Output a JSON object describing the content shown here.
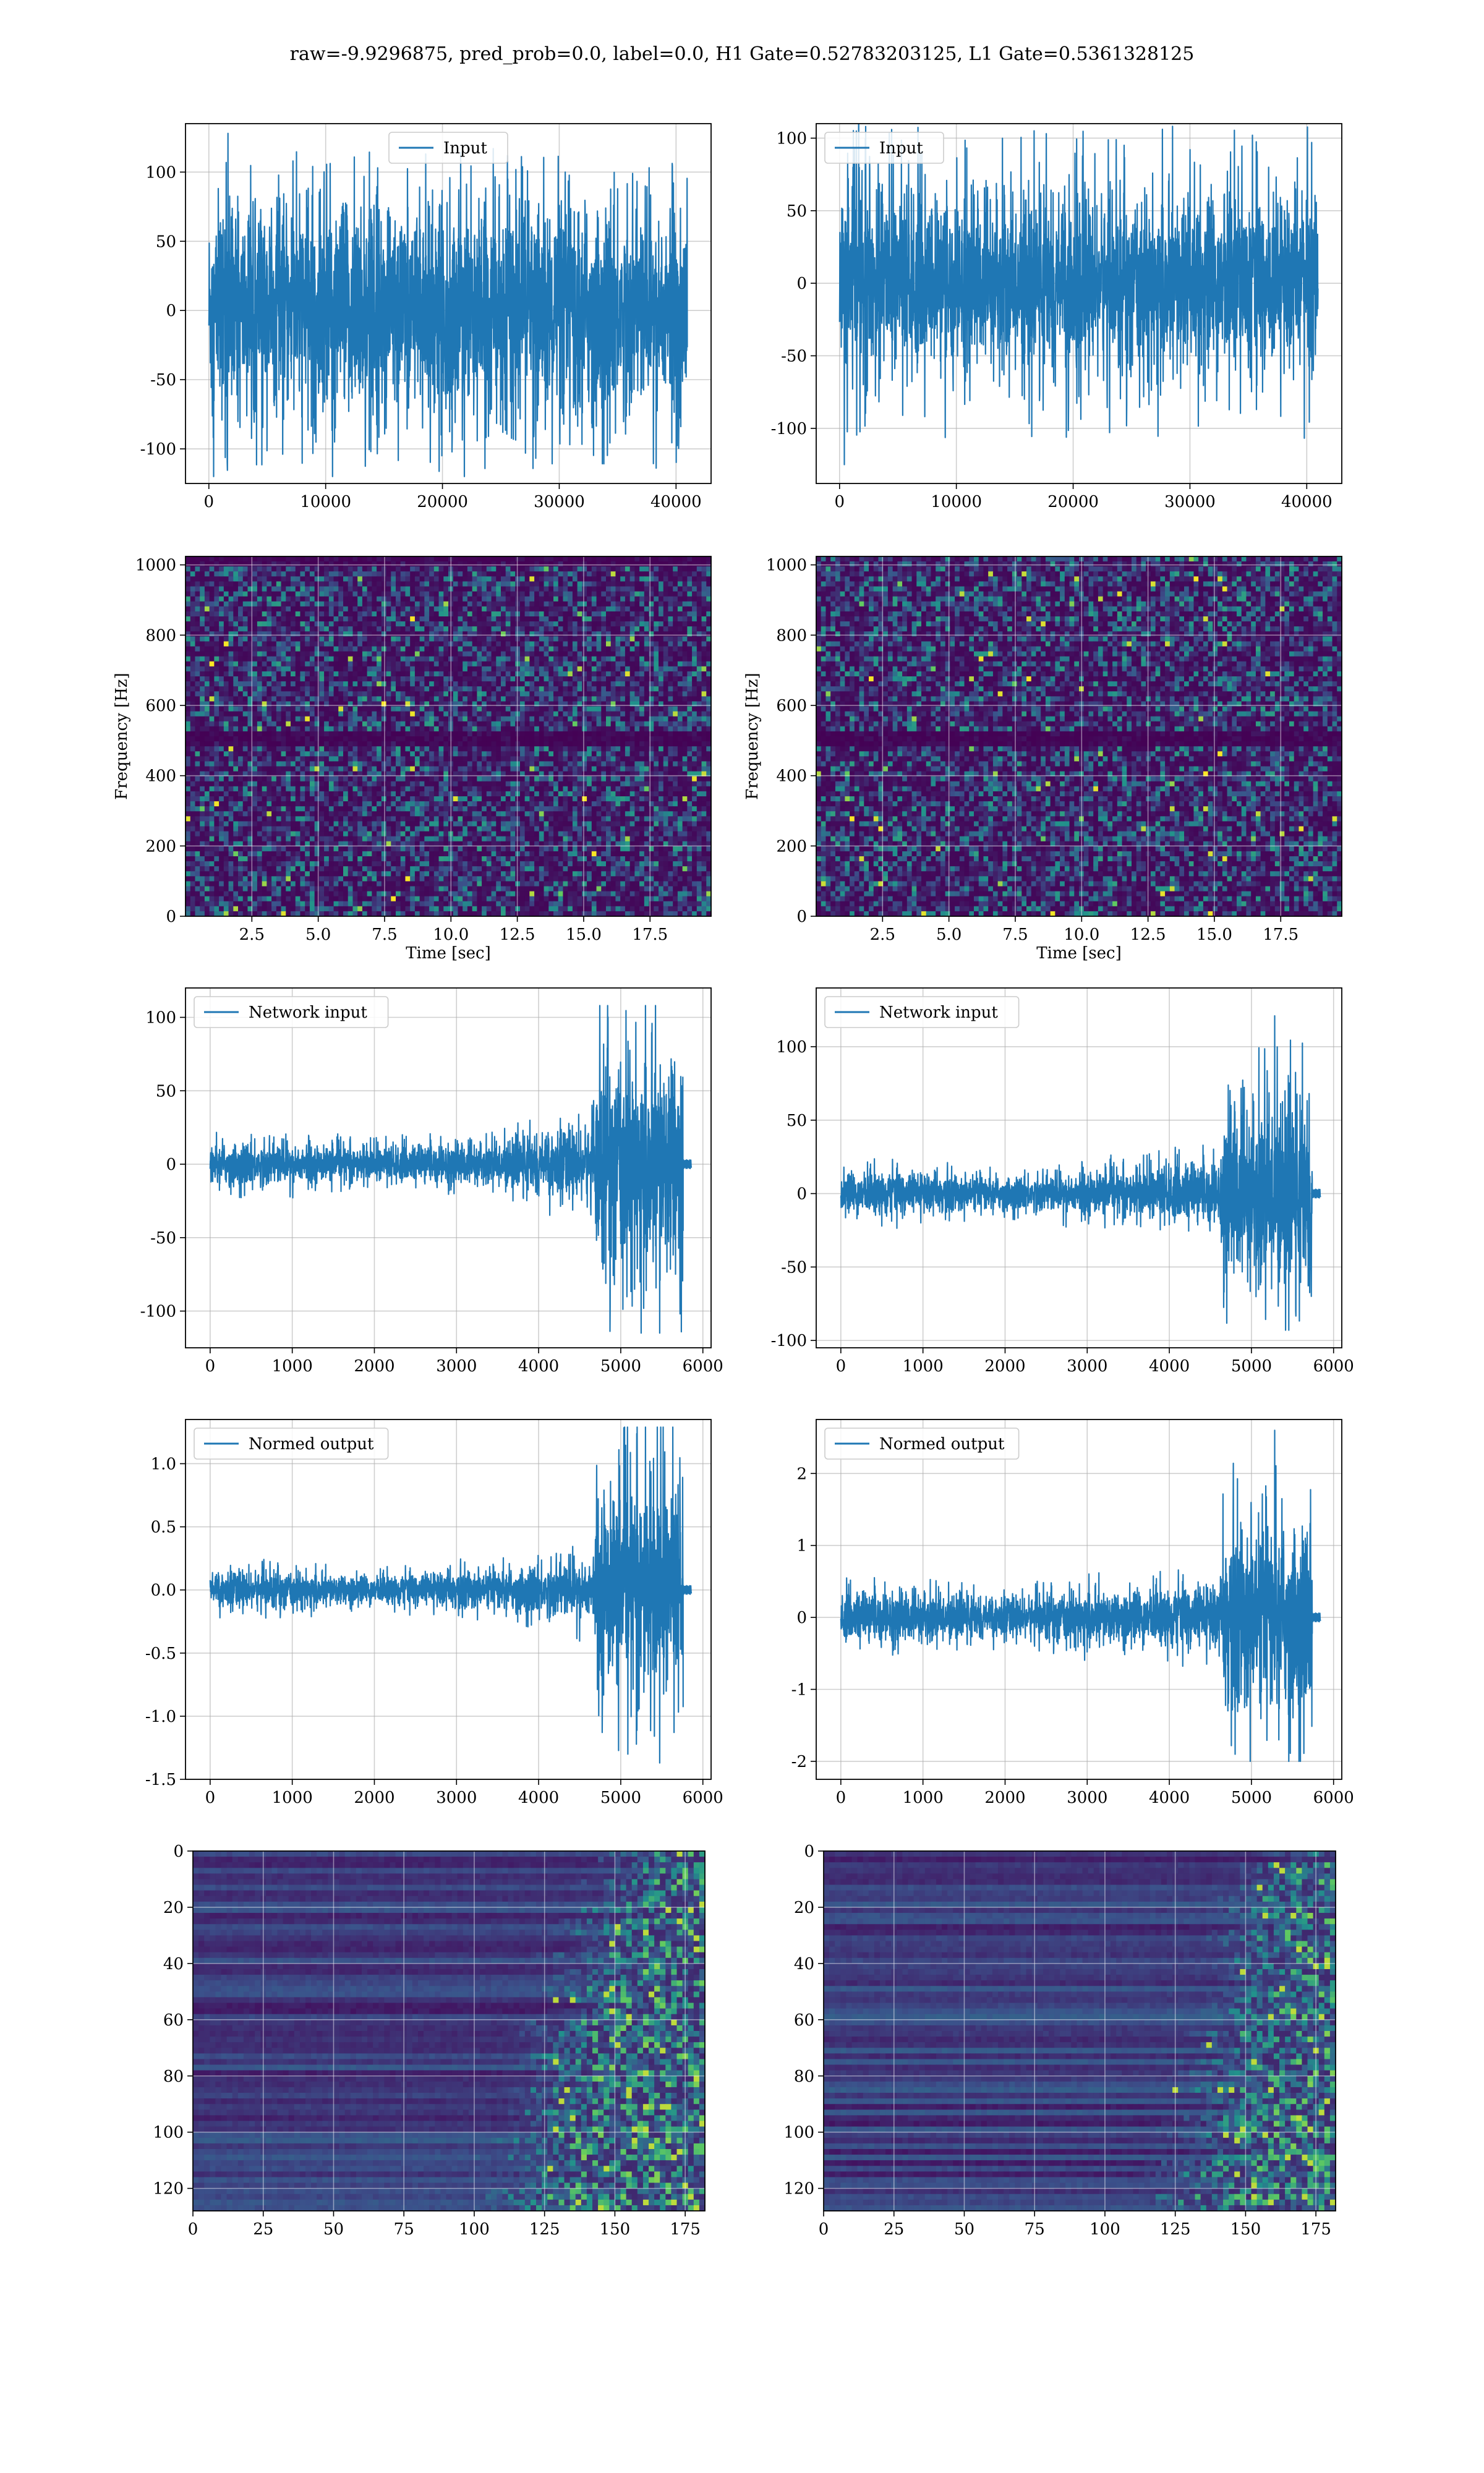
{
  "figure": {
    "title": "raw=-9.9296875, pred_prob=0.0, label=0.0, H1 Gate=0.52783203125, L1 Gate=0.5361328125"
  },
  "colors": {
    "line": "#1f77b4",
    "grid": "#b0b0b0",
    "viridis_low": "#440154",
    "viridis_mid": "#21918c",
    "viridis_high": "#fde725"
  },
  "chart_data": [
    {
      "id": "input-h1",
      "type": "line",
      "series": [
        {
          "name": "Input"
        }
      ],
      "legend": "top-center",
      "xlim": [
        -2000,
        43000
      ],
      "ylim": [
        -125,
        135
      ],
      "xticks": [
        0,
        10000,
        20000,
        30000,
        40000
      ],
      "yticks": [
        -100,
        -50,
        0,
        50,
        100
      ],
      "envelope": {
        "x_range": [
          0,
          40960
        ],
        "core": 70,
        "peak_max": 128,
        "peak_min": -120
      },
      "grid": true
    },
    {
      "id": "input-l1",
      "type": "line",
      "series": [
        {
          "name": "Input"
        }
      ],
      "legend": "top-left",
      "xlim": [
        -2000,
        43000
      ],
      "ylim": [
        -138,
        110
      ],
      "xticks": [
        0,
        10000,
        20000,
        30000,
        40000
      ],
      "yticks": [
        -100,
        -50,
        0,
        50,
        100
      ],
      "envelope": {
        "x_range": [
          0,
          40960
        ],
        "core": 55,
        "peak_max": 122,
        "peak_min": -125
      },
      "grid": true
    },
    {
      "id": "spec-h1",
      "type": "heatmap",
      "xlabel": "Time [sec]",
      "ylabel": "Frequency [Hz]",
      "xlim": [
        0,
        19.8
      ],
      "ylim": [
        0,
        1024
      ],
      "xticks": [
        2.5,
        5.0,
        7.5,
        10.0,
        12.5,
        15.0,
        17.5
      ],
      "yticks": [
        0,
        200,
        400,
        600,
        800,
        1000
      ],
      "dark_bands": [
        [
          490,
          530
        ],
        [
          1000,
          1024
        ]
      ],
      "grid": true
    },
    {
      "id": "spec-l1",
      "type": "heatmap",
      "xlabel": "Time [sec]",
      "ylabel": "Frequency [Hz]",
      "xlim": [
        0,
        19.8
      ],
      "ylim": [
        0,
        1024
      ],
      "xticks": [
        2.5,
        5.0,
        7.5,
        10.0,
        12.5,
        15.0,
        17.5
      ],
      "yticks": [
        0,
        200,
        400,
        600,
        800,
        1000
      ],
      "dark_bands": [
        [
          490,
          530
        ]
      ],
      "grid": true
    },
    {
      "id": "netin-h1",
      "type": "line",
      "series": [
        {
          "name": "Network input"
        }
      ],
      "legend": "top-left",
      "xlim": [
        -300,
        6100
      ],
      "ylim": [
        -125,
        120
      ],
      "xticks": [
        0,
        1000,
        2000,
        3000,
        4000,
        5000,
        6000
      ],
      "yticks": [
        -100,
        -50,
        0,
        50,
        100
      ],
      "envelope": {
        "x_range": [
          0,
          5760
        ],
        "burst_start": 4700,
        "quiet_amp": 12,
        "rise_amp": 25,
        "burst_amp": 70,
        "peak_max": 108,
        "peak_min": -115,
        "tail_end": 5860
      },
      "grid": true
    },
    {
      "id": "netin-l1",
      "type": "line",
      "series": [
        {
          "name": "Network input"
        }
      ],
      "legend": "top-left",
      "xlim": [
        -300,
        6100
      ],
      "ylim": [
        -105,
        140
      ],
      "xticks": [
        0,
        1000,
        2000,
        3000,
        4000,
        5000,
        6000
      ],
      "yticks": [
        -100,
        -50,
        0,
        50,
        100
      ],
      "envelope": {
        "x_range": [
          0,
          5740
        ],
        "burst_start": 4650,
        "quiet_amp": 12,
        "rise_amp": 22,
        "burst_amp": 60,
        "peak_max": 121,
        "peak_min": -93,
        "tail_end": 5840
      },
      "grid": true
    },
    {
      "id": "norm-h1",
      "type": "line",
      "series": [
        {
          "name": "Normed output"
        }
      ],
      "legend": "top-left",
      "xlim": [
        -300,
        6100
      ],
      "ylim": [
        -1.5,
        1.35
      ],
      "xticks": [
        0,
        1000,
        2000,
        3000,
        4000,
        5000,
        6000
      ],
      "yticks": [
        -1.5,
        -1.0,
        -0.5,
        0.0,
        0.5,
        1.0
      ],
      "envelope": {
        "x_range": [
          0,
          5760
        ],
        "burst_start": 4700,
        "quiet_amp": 0.12,
        "rise_amp": 0.25,
        "burst_amp": 0.75,
        "peak_max": 1.29,
        "peak_min": -1.37,
        "tail_end": 5860
      },
      "grid": true
    },
    {
      "id": "norm-l1",
      "type": "line",
      "series": [
        {
          "name": "Normed output"
        }
      ],
      "legend": "top-left",
      "xlim": [
        -300,
        6100
      ],
      "ylim": [
        -2.25,
        2.75
      ],
      "xticks": [
        0,
        1000,
        2000,
        3000,
        4000,
        5000,
        6000
      ],
      "yticks": [
        -2,
        -1,
        0,
        1,
        2
      ],
      "envelope": {
        "x_range": [
          0,
          5740
        ],
        "burst_start": 4650,
        "quiet_amp": 0.3,
        "rise_amp": 0.45,
        "burst_amp": 1.2,
        "peak_max": 2.6,
        "peak_min": -2.0,
        "tail_end": 5840
      },
      "grid": true
    },
    {
      "id": "feat-h1",
      "type": "heatmap",
      "xlim": [
        0,
        182
      ],
      "ylim": [
        128,
        0
      ],
      "xticks": [
        0,
        25,
        50,
        75,
        100,
        125,
        150,
        175
      ],
      "yticks": [
        0,
        20,
        40,
        60,
        80,
        100,
        120
      ],
      "activity_onset": [
        140,
        100
      ],
      "grid": true
    },
    {
      "id": "feat-l1",
      "type": "heatmap",
      "xlim": [
        0,
        182
      ],
      "ylim": [
        128,
        0
      ],
      "xticks": [
        0,
        25,
        50,
        75,
        100,
        125,
        150,
        175
      ],
      "yticks": [
        0,
        20,
        40,
        60,
        80,
        100,
        120
      ],
      "activity_onset": [
        150,
        115
      ],
      "grid": true
    }
  ]
}
